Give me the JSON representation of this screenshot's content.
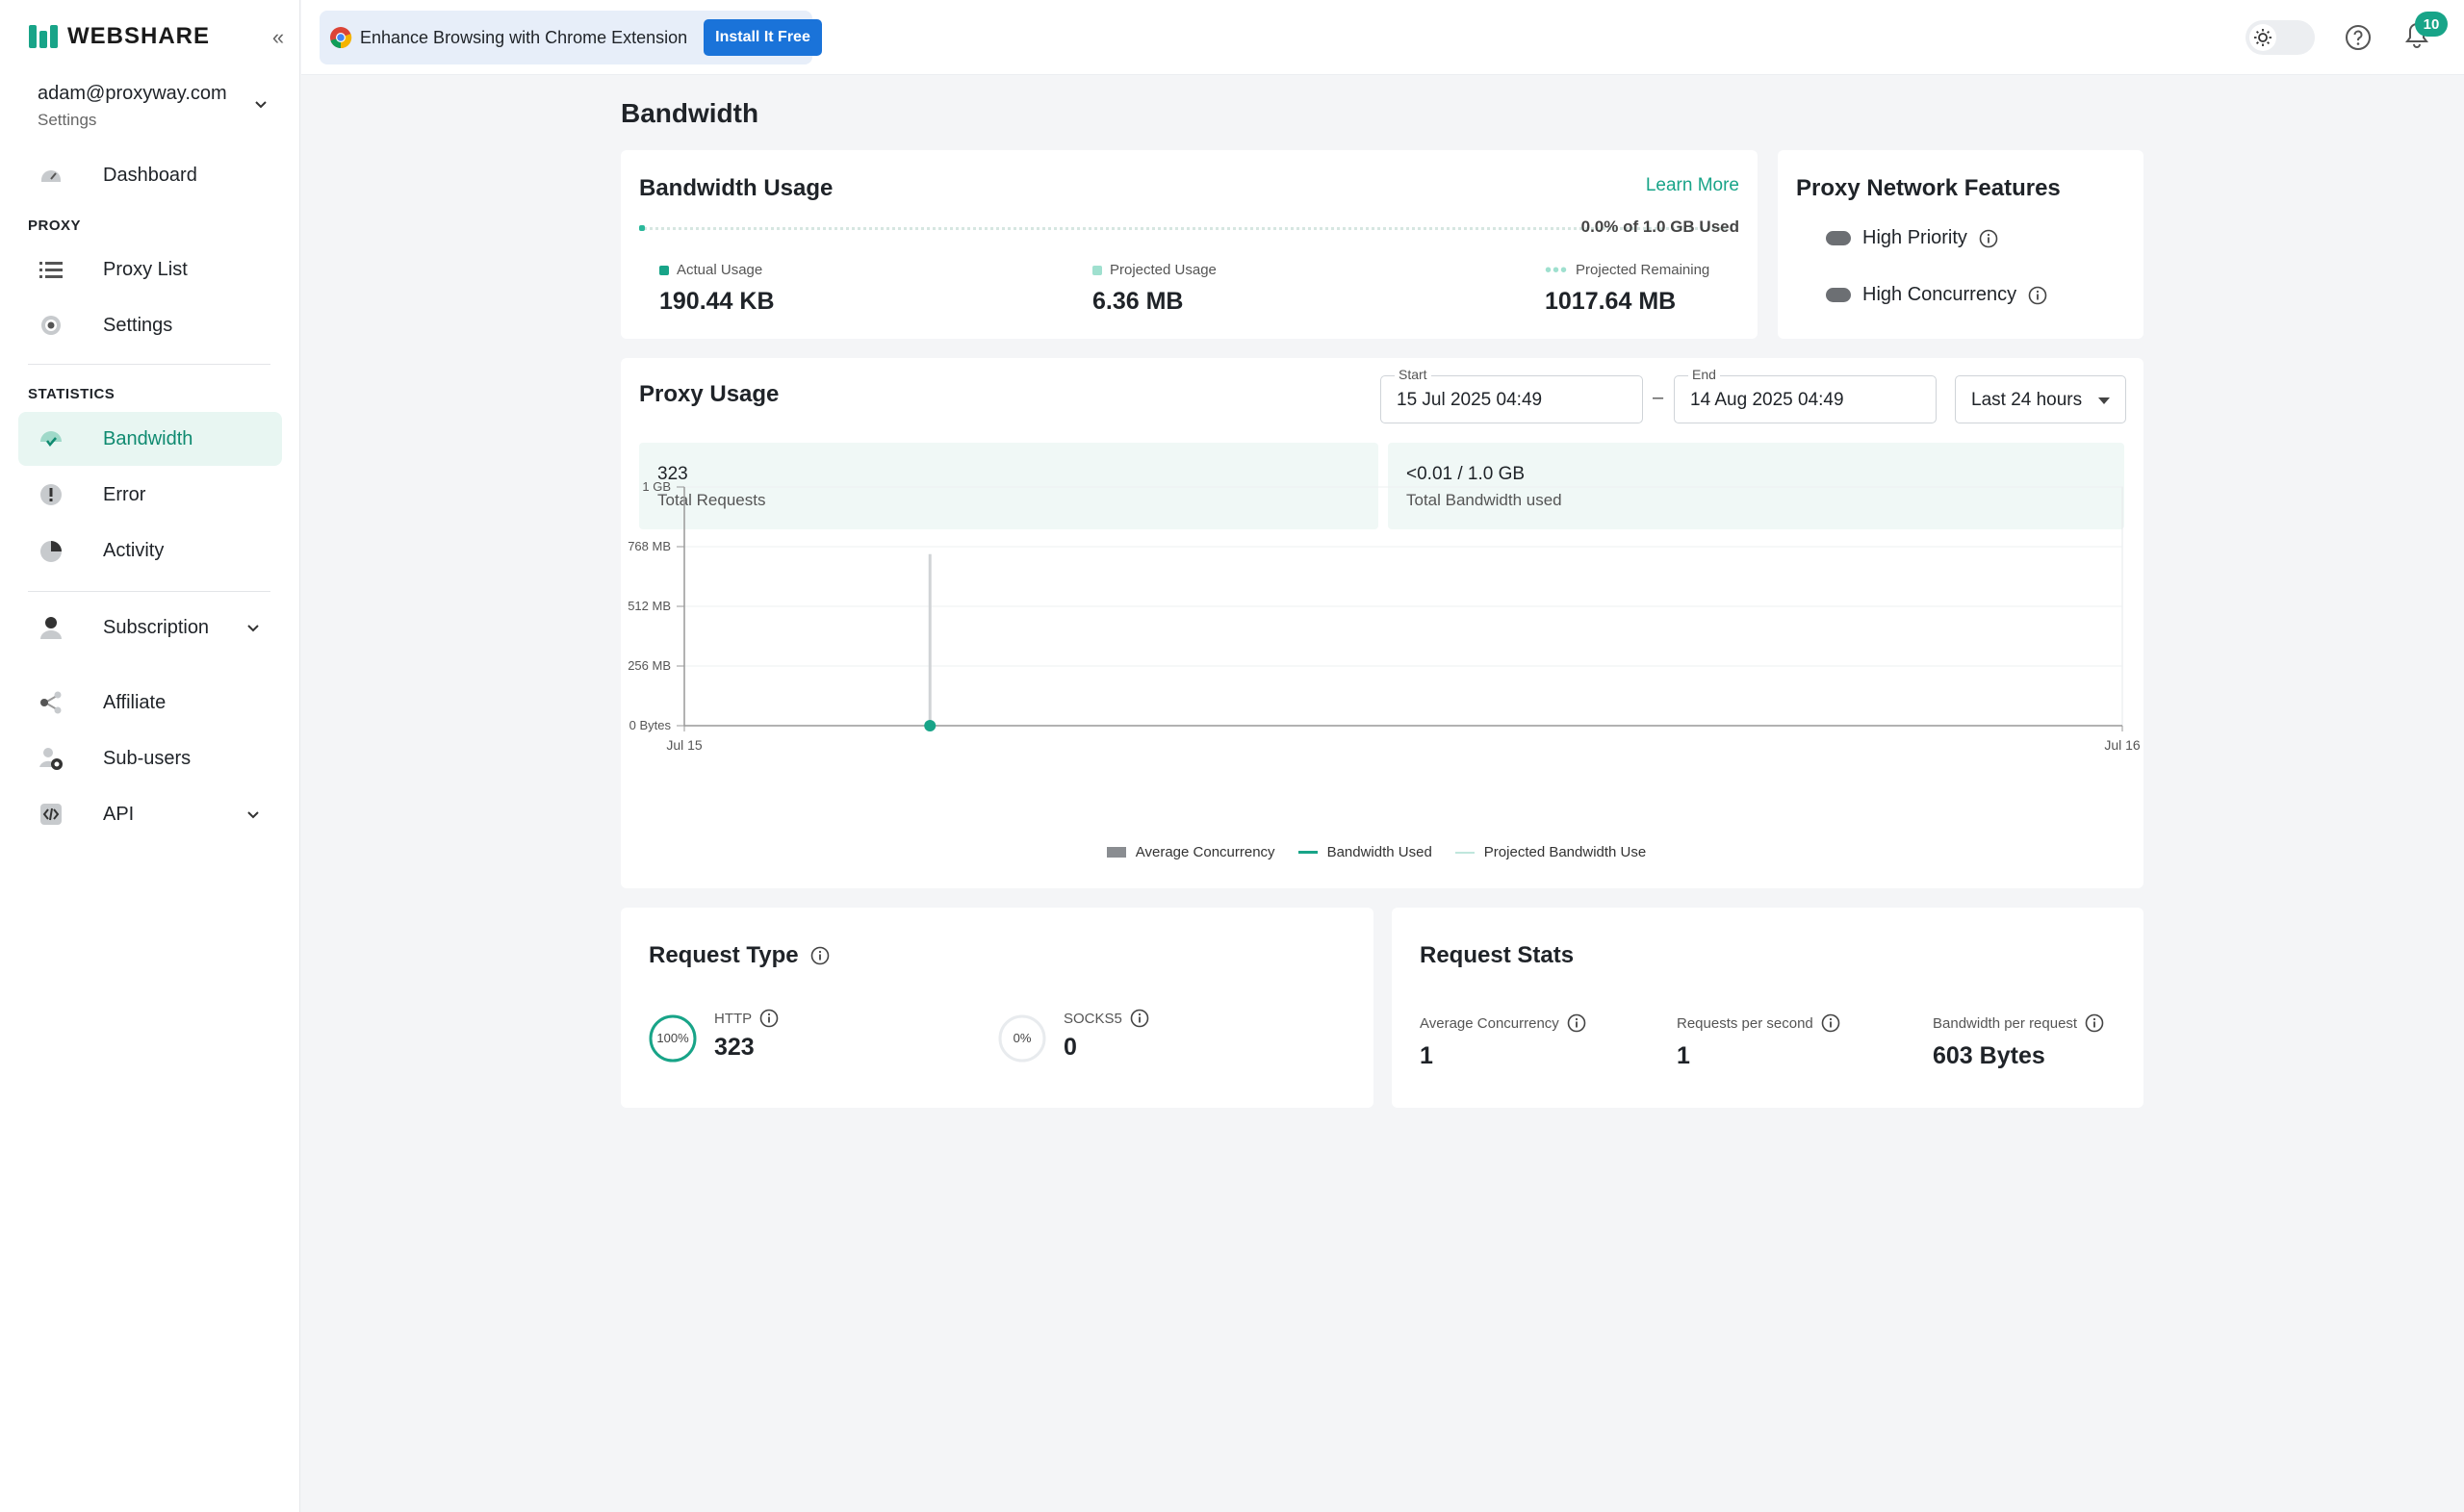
{
  "brand": {
    "name": "WEBSHARE",
    "accent": "#18a488"
  },
  "account": {
    "email": "adam@proxyway.com",
    "subtitle": "Settings"
  },
  "sidebar": {
    "dashboard": "Dashboard",
    "proxy_section": "PROXY",
    "proxy_list": "Proxy List",
    "settings": "Settings",
    "statistics_section": "STATISTICS",
    "bandwidth": "Bandwidth",
    "error": "Error",
    "activity": "Activity",
    "subscription": "Subscription",
    "affiliate": "Affiliate",
    "sub_users": "Sub-users",
    "api": "API"
  },
  "topbar": {
    "banner_text": "Enhance Browsing with Chrome Extension",
    "banner_button": "Install It Free",
    "notification_count": "10"
  },
  "page": {
    "title": "Bandwidth"
  },
  "bandwidth_usage": {
    "title": "Bandwidth Usage",
    "learn_more": "Learn More",
    "used_text": "0.0% of 1.0 GB Used",
    "used_fraction": 0.0002,
    "actual_label": "Actual Usage",
    "actual_value": "190.44 KB",
    "projected_label": "Projected Usage",
    "projected_value": "6.36 MB",
    "remaining_label": "Projected Remaining",
    "remaining_value": "1017.64 MB"
  },
  "features": {
    "title": "Proxy Network Features",
    "high_priority": "High Priority",
    "high_concurrency": "High Concurrency"
  },
  "proxy_usage": {
    "title": "Proxy Usage",
    "start_label": "Start",
    "start_value": "15 Jul 2025 04:49",
    "end_label": "End",
    "end_value": "14 Aug 2025 04:49",
    "separator": "–",
    "range": "Last 24 hours",
    "total_requests_value": "323",
    "total_requests_label": "Total Requests",
    "total_bandwidth_value": "<0.01 / 1.0 GB",
    "total_bandwidth_label": "Total Bandwidth used"
  },
  "chart_data": {
    "type": "line",
    "y_ticks": [
      "0 Bytes",
      "256 MB",
      "512 MB",
      "768 MB",
      "1 GB"
    ],
    "y_tick_values": [
      0,
      256,
      512,
      768,
      1024
    ],
    "ylim": [
      0,
      1024
    ],
    "y_unit": "MB",
    "x_ticks": [
      "Jul 15",
      "Jul 16"
    ],
    "x_range": [
      0,
      24
    ],
    "x_unit": "hours",
    "grid": true,
    "legend_position": "bottom",
    "series": [
      {
        "name": "Average Concurrency",
        "kind": "bar",
        "color": "#8a8d91",
        "points": [
          [
            4.1,
            736
          ]
        ]
      },
      {
        "name": "Bandwidth Used",
        "kind": "line",
        "color": "#18a488",
        "points": [
          [
            4.1,
            0.19
          ]
        ]
      },
      {
        "name": "Projected Bandwidth Use",
        "kind": "line",
        "color": "#bfe6dc",
        "points": []
      }
    ]
  },
  "request_type": {
    "title": "Request Type",
    "http_label": "HTTP",
    "http_value": "323",
    "http_percent": "100%",
    "http_fraction": 1.0,
    "socks_label": "SOCKS5",
    "socks_value": "0",
    "socks_percent": "0%",
    "socks_fraction": 0.0
  },
  "request_stats": {
    "title": "Request Stats",
    "avg_conc_label": "Average Concurrency",
    "avg_conc_value": "1",
    "rps_label": "Requests per second",
    "rps_value": "1",
    "bpr_label": "Bandwidth per request",
    "bpr_value": "603 Bytes"
  }
}
